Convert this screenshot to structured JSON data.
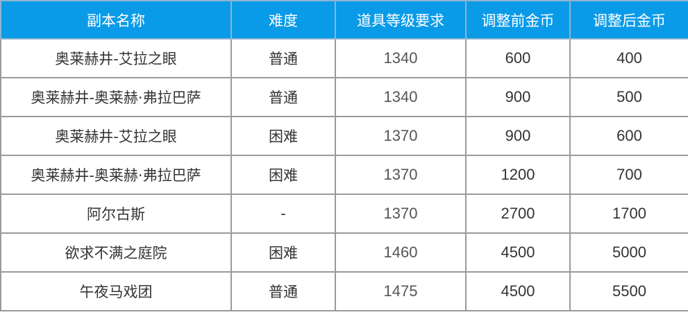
{
  "table": {
    "header_color": "#0a9be8",
    "columns": [
      "副本名称",
      "难度",
      "道具等级要求",
      "调整前金币",
      "调整后金币"
    ],
    "rows": [
      [
        "奥莱赫井-艾拉之眼",
        "普通",
        "1340",
        "600",
        "400"
      ],
      [
        "奥莱赫井-奥莱赫·弗拉巴萨",
        "普通",
        "1340",
        "900",
        "500"
      ],
      [
        "奥莱赫井-艾拉之眼",
        "困难",
        "1370",
        "900",
        "600"
      ],
      [
        "奥莱赫井-奥莱赫·弗拉巴萨",
        "困难",
        "1370",
        "1200",
        "700"
      ],
      [
        "阿尔古斯",
        "-",
        "1370",
        "2700",
        "1700"
      ],
      [
        "欲求不满之庭院",
        "困难",
        "1460",
        "4500",
        "5000"
      ],
      [
        "午夜马戏团",
        "普通",
        "1475",
        "4500",
        "5500"
      ]
    ]
  }
}
